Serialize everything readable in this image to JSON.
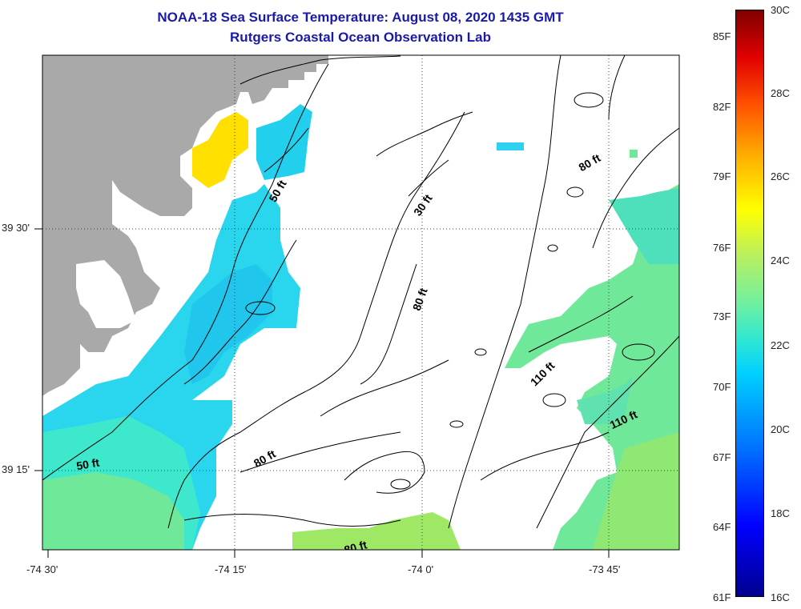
{
  "title": {
    "line1": "NOAA-18 Sea Surface Temperature:  August 08, 2020 1435 GMT",
    "line2": "Rutgers Coastal Ocean Observation Lab"
  },
  "axes": {
    "x_ticks": [
      "-74 30'",
      "-74 15'",
      "-74 0'",
      "-73 45'"
    ],
    "y_ticks": [
      "39 30'",
      "39 15'"
    ]
  },
  "contours": [
    "50 ft",
    "30 ft",
    "80 ft",
    "80 ft",
    "80 ft",
    "110 ft",
    "110 ft",
    "80 ft",
    "50 ft",
    "80 ft"
  ],
  "colorbar": {
    "fahrenheit": [
      "85F",
      "82F",
      "79F",
      "76F",
      "73F",
      "70F",
      "67F",
      "64F",
      "61F"
    ],
    "celsius": [
      "30C",
      "28C",
      "26C",
      "24C",
      "22C",
      "20C",
      "18C",
      "16C"
    ]
  },
  "colors": {
    "land": "#a9a9a9",
    "cloud": "#ffffff",
    "water_cyan": "#29d6ee",
    "water_aqua": "#3ee8cc",
    "water_green": "#6fe89a",
    "water_lime": "#9ee866",
    "warm_yellow": "#ffe000"
  }
}
